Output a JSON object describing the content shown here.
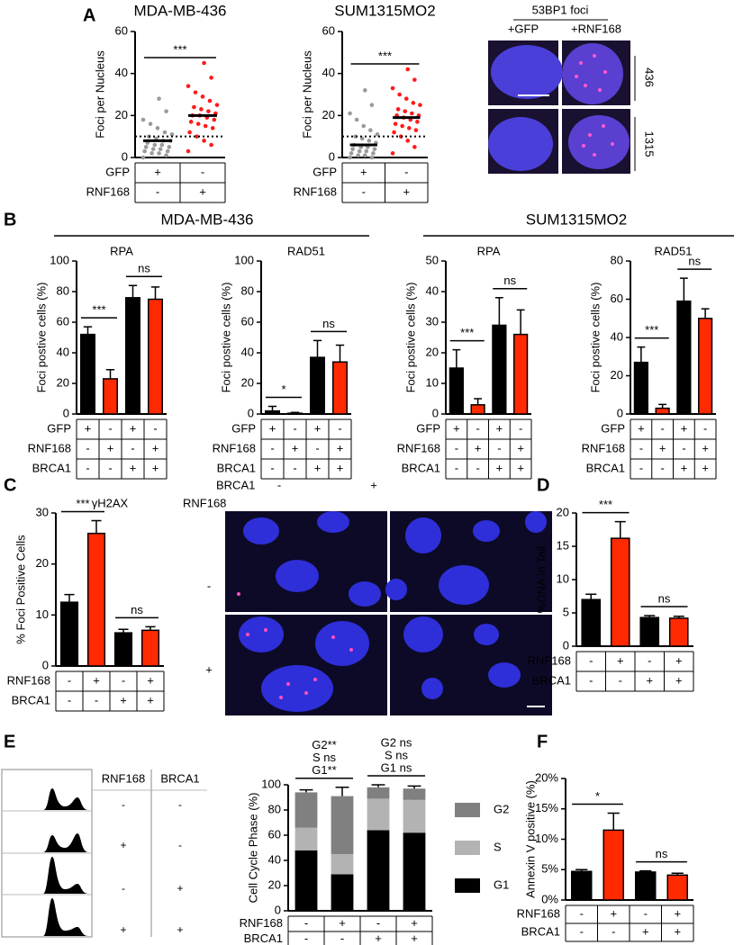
{
  "figure": {
    "panel_letters": [
      "A",
      "B",
      "C",
      "D",
      "E",
      "F"
    ],
    "groups": [
      "MDA-MB-436",
      "SUM1315MO2"
    ],
    "foci_image": {
      "title": "53BP1 foci",
      "columns": [
        "+GFP",
        "+RNF168"
      ],
      "rows": [
        "436",
        "1315"
      ]
    },
    "gh2ax_image": {
      "column_header": "BRCA1",
      "columns": [
        "-",
        "+"
      ],
      "row_header": "RNF168",
      "rows": [
        "-",
        "+"
      ]
    },
    "cell_cycle_table": {
      "headers": [
        "RNF168",
        "BRCA1"
      ],
      "rows": [
        [
          "-",
          "-"
        ],
        [
          "+",
          "-"
        ],
        [
          "-",
          "+"
        ],
        [
          "+",
          "+"
        ]
      ]
    }
  },
  "chart_data": [
    {
      "type": "strip",
      "title": "MDA-MB-436",
      "ylabel": "Foci per Nucleus",
      "ylim": [
        0,
        60
      ],
      "yticks": [
        0,
        20,
        40,
        60
      ],
      "threshold": 10,
      "series": [
        {
          "color": "#9a9a9a",
          "mean": 8,
          "values": [
            0,
            1,
            2,
            2,
            3,
            3,
            4,
            4,
            5,
            5,
            6,
            6,
            7,
            8,
            8,
            9,
            10,
            11,
            12,
            14,
            16,
            18,
            22,
            28
          ]
        },
        {
          "color": "#ff1a1a",
          "mean": 20,
          "values": [
            3,
            6,
            8,
            10,
            12,
            14,
            15,
            16,
            17,
            18,
            19,
            20,
            20,
            21,
            22,
            23,
            24,
            25,
            27,
            29,
            31,
            34,
            38,
            45
          ]
        }
      ],
      "comparisons": [
        "***"
      ],
      "table": [
        {
          "label": "GFP",
          "cells": [
            "+",
            "-"
          ]
        },
        {
          "label": "RNF168",
          "cells": [
            "-",
            "+"
          ]
        }
      ]
    },
    {
      "type": "strip",
      "title": "SUM1315MO2",
      "ylabel": "Foci per Nucleus",
      "ylim": [
        0,
        60
      ],
      "yticks": [
        0,
        20,
        40,
        60
      ],
      "threshold": 10,
      "series": [
        {
          "color": "#9a9a9a",
          "mean": 6,
          "values": [
            0,
            0,
            1,
            1,
            2,
            2,
            3,
            3,
            4,
            4,
            5,
            5,
            6,
            7,
            8,
            9,
            10,
            11,
            13,
            15,
            18,
            21,
            25,
            32
          ]
        },
        {
          "color": "#ff1a1a",
          "mean": 19,
          "values": [
            2,
            5,
            8,
            10,
            12,
            13,
            14,
            15,
            16,
            17,
            18,
            19,
            20,
            20,
            21,
            22,
            23,
            25,
            26,
            28,
            30,
            33,
            37,
            42
          ]
        }
      ],
      "comparisons": [
        "***"
      ],
      "table": [
        {
          "label": "GFP",
          "cells": [
            "+",
            "-"
          ]
        },
        {
          "label": "RNF168",
          "cells": [
            "-",
            "+"
          ]
        }
      ]
    },
    {
      "type": "bar",
      "title": "RPA",
      "ylabel": "Foci postive cells (%)",
      "ylim": [
        0,
        100
      ],
      "yticks": [
        0,
        20,
        40,
        60,
        80,
        100
      ],
      "values": [
        52,
        23,
        76,
        75
      ],
      "errors": [
        5,
        6,
        8,
        8
      ],
      "colors": [
        "#000000",
        "#ff2a00",
        "#000000",
        "#ff2a00"
      ],
      "comparisons": [
        "***",
        "ns"
      ],
      "table": [
        {
          "label": "GFP",
          "cells": [
            "+",
            "-",
            "+",
            "-"
          ]
        },
        {
          "label": "RNF168",
          "cells": [
            "-",
            "+",
            "-",
            "+"
          ]
        },
        {
          "label": "BRCA1",
          "cells": [
            "-",
            "-",
            "+",
            "+"
          ]
        }
      ]
    },
    {
      "type": "bar",
      "title": "RAD51",
      "ylabel": "Foci postive cells (%)",
      "ylim": [
        0,
        100
      ],
      "yticks": [
        0,
        20,
        40,
        60,
        80,
        100
      ],
      "values": [
        2,
        0.5,
        37,
        34
      ],
      "errors": [
        3,
        0.5,
        11,
        11
      ],
      "colors": [
        "#000000",
        "#ff2a00",
        "#000000",
        "#ff2a00"
      ],
      "comparisons": [
        "*",
        "ns"
      ],
      "table": [
        {
          "label": "GFP",
          "cells": [
            "+",
            "-",
            "+",
            "-"
          ]
        },
        {
          "label": "RNF168",
          "cells": [
            "-",
            "+",
            "-",
            "+"
          ]
        },
        {
          "label": "BRCA1",
          "cells": [
            "-",
            "-",
            "+",
            "+"
          ]
        }
      ]
    },
    {
      "type": "bar",
      "title": "RPA",
      "ylabel": "Foci postive cells (%)",
      "ylim": [
        0,
        50
      ],
      "yticks": [
        0,
        10,
        20,
        30,
        40,
        50
      ],
      "values": [
        15,
        3,
        29,
        26
      ],
      "errors": [
        6,
        2,
        9,
        8
      ],
      "colors": [
        "#000000",
        "#ff2a00",
        "#000000",
        "#ff2a00"
      ],
      "comparisons": [
        "***",
        "ns"
      ],
      "table": [
        {
          "label": "GFP",
          "cells": [
            "+",
            "-",
            "+",
            "-"
          ]
        },
        {
          "label": "RNF168",
          "cells": [
            "-",
            "+",
            "-",
            "+"
          ]
        },
        {
          "label": "BRCA1",
          "cells": [
            "-",
            "-",
            "+",
            "+"
          ]
        }
      ]
    },
    {
      "type": "bar",
      "title": "RAD51",
      "ylabel": "Foci postive cells (%)",
      "ylim": [
        0,
        80
      ],
      "yticks": [
        0,
        20,
        40,
        60,
        80
      ],
      "values": [
        27,
        3,
        59,
        50
      ],
      "errors": [
        8,
        2,
        12,
        5
      ],
      "colors": [
        "#000000",
        "#ff2a00",
        "#000000",
        "#ff2a00"
      ],
      "comparisons": [
        "***",
        "ns"
      ],
      "table": [
        {
          "label": "GFP",
          "cells": [
            "+",
            "-",
            "+",
            "-"
          ]
        },
        {
          "label": "RNF168",
          "cells": [
            "-",
            "+",
            "-",
            "+"
          ]
        },
        {
          "label": "BRCA1",
          "cells": [
            "-",
            "-",
            "+",
            "+"
          ]
        }
      ]
    },
    {
      "type": "bar",
      "title": "γH2AX",
      "ylabel": "% Foci Positive Cells",
      "ylim": [
        0,
        30
      ],
      "yticks": [
        0,
        10,
        20,
        30
      ],
      "values": [
        12.5,
        26,
        6.5,
        7
      ],
      "errors": [
        1.5,
        2.5,
        0.7,
        0.7
      ],
      "colors": [
        "#000000",
        "#ff2a00",
        "#000000",
        "#ff2a00"
      ],
      "comparisons": [
        "***",
        "ns"
      ],
      "table": [
        {
          "label": "RNF168",
          "cells": [
            "-",
            "+",
            "-",
            "+"
          ]
        },
        {
          "label": "BRCA1",
          "cells": [
            "-",
            "-",
            "+",
            "+"
          ]
        }
      ]
    },
    {
      "type": "bar",
      "ylabel": "%DNA in Tail",
      "ylim": [
        0,
        20
      ],
      "yticks": [
        0,
        5,
        10,
        15,
        20
      ],
      "values": [
        7,
        16.2,
        4.3,
        4.2
      ],
      "errors": [
        0.8,
        2.5,
        0.3,
        0.3
      ],
      "colors": [
        "#000000",
        "#ff2a00",
        "#000000",
        "#ff2a00"
      ],
      "comparisons": [
        "***",
        "ns"
      ],
      "table": [
        {
          "label": "RNF168",
          "cells": [
            "-",
            "+",
            "-",
            "+"
          ]
        },
        {
          "label": "BRCA1",
          "cells": [
            "-",
            "-",
            "+",
            "+"
          ]
        }
      ]
    },
    {
      "type": "stacked",
      "ylabel": "Cell Cycle Phase (%)",
      "ylim": [
        0,
        100
      ],
      "yticks": [
        0,
        20,
        40,
        60,
        80,
        100
      ],
      "series": [
        {
          "name": "G1",
          "color": "#000000",
          "values": [
            48,
            29,
            64,
            62
          ],
          "errors": [
            1,
            5,
            1,
            1
          ]
        },
        {
          "name": "S",
          "color": "#b3b3b3",
          "values": [
            18,
            16,
            25,
            26
          ],
          "errors": [
            1,
            1,
            1,
            1
          ]
        },
        {
          "name": "G2",
          "color": "#808080",
          "values": [
            28,
            46,
            9,
            9
          ],
          "errors": [
            2,
            7,
            2,
            2
          ]
        }
      ],
      "comparisons": [
        [
          "G2**",
          "S ns",
          "G1**"
        ],
        [
          "G2 ns",
          "S ns",
          "G1 ns"
        ]
      ],
      "table": [
        {
          "label": "RNF168",
          "cells": [
            "-",
            "+",
            "-",
            "+"
          ]
        },
        {
          "label": "BRCA1",
          "cells": [
            "-",
            "-",
            "+",
            "+"
          ]
        }
      ]
    },
    {
      "type": "bar",
      "ylabel": "Annexin V positive (%)",
      "ylim": [
        0,
        20
      ],
      "yticks": [
        {
          "value": 0,
          "label": "0%"
        },
        {
          "value": 5,
          "label": "5%"
        },
        {
          "value": 10,
          "label": "10%"
        },
        {
          "value": 15,
          "label": "15%"
        },
        {
          "value": 20,
          "label": "20%"
        }
      ],
      "values": [
        4.7,
        11.5,
        4.6,
        4.1
      ],
      "errors": [
        0.3,
        2.8,
        0.2,
        0.3
      ],
      "colors": [
        "#000000",
        "#ff2a00",
        "#000000",
        "#ff2a00"
      ],
      "comparisons": [
        "*",
        "ns"
      ],
      "table": [
        {
          "label": "RNF168",
          "cells": [
            "-",
            "+",
            "-",
            "+"
          ]
        },
        {
          "label": "BRCA1",
          "cells": [
            "-",
            "-",
            "+",
            "+"
          ]
        }
      ]
    }
  ]
}
